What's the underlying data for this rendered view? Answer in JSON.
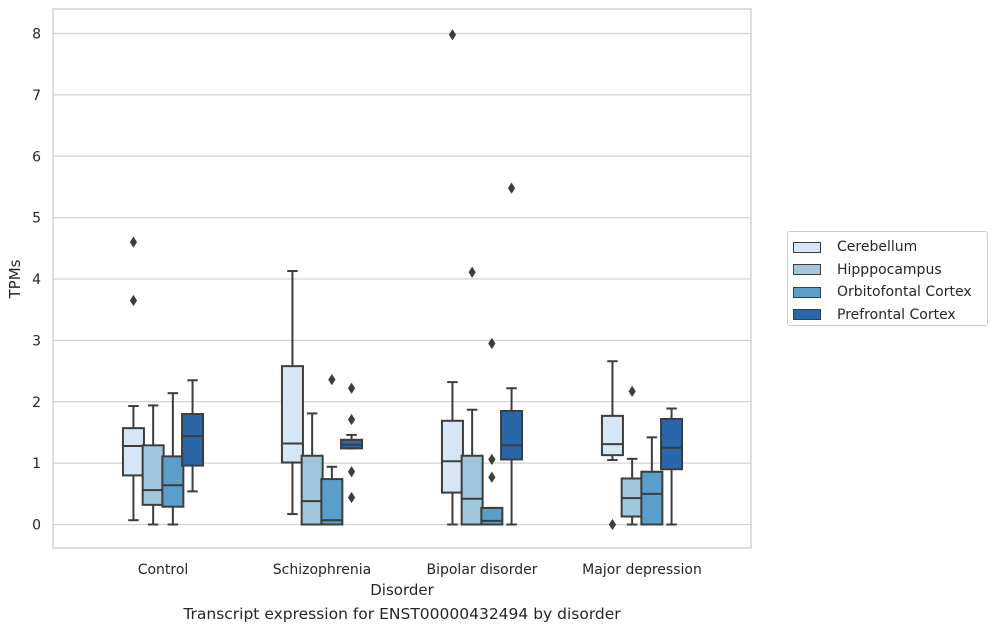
{
  "chart_data": {
    "type": "boxplot",
    "caption": "Transcript expression for ENST00000432494 by disorder",
    "xlabel": "Disorder",
    "ylabel": "TPMs",
    "ylim": [
      -0.4,
      8.4
    ],
    "yticks": [
      0,
      1,
      2,
      3,
      4,
      5,
      6,
      7,
      8
    ],
    "grid": true,
    "legend_position": "right",
    "categories": [
      "Control",
      "Schizophrenia",
      "Bipolar disorder",
      "Major depression"
    ],
    "series": [
      {
        "name": "Cerebellum",
        "color": "#d6e6f4",
        "boxes": [
          {
            "whisker_low": 0.07,
            "q1": 0.8,
            "median": 1.28,
            "q3": 1.57,
            "whisker_high": 1.93,
            "outliers": [
              3.65,
              4.6
            ]
          },
          {
            "whisker_low": 0.17,
            "q1": 1.01,
            "median": 1.32,
            "q3": 2.58,
            "whisker_high": 4.13,
            "outliers": []
          },
          {
            "whisker_low": 0.0,
            "q1": 0.52,
            "median": 1.03,
            "q3": 1.69,
            "whisker_high": 2.32,
            "outliers": [
              7.98
            ]
          },
          {
            "whisker_low": 1.05,
            "q1": 1.13,
            "median": 1.31,
            "q3": 1.77,
            "whisker_high": 2.66,
            "outliers": [
              0.0
            ]
          }
        ]
      },
      {
        "name": "Hipppocampus",
        "color": "#a0c7de",
        "boxes": [
          {
            "whisker_low": 0.0,
            "q1": 0.32,
            "median": 0.56,
            "q3": 1.29,
            "whisker_high": 1.94,
            "outliers": []
          },
          {
            "whisker_low": 0.0,
            "q1": 0.0,
            "median": 0.38,
            "q3": 1.12,
            "whisker_high": 1.81,
            "outliers": []
          },
          {
            "whisker_low": 0.0,
            "q1": 0.0,
            "median": 0.42,
            "q3": 1.12,
            "whisker_high": 1.87,
            "outliers": [
              4.11
            ]
          },
          {
            "whisker_low": 0.0,
            "q1": 0.13,
            "median": 0.43,
            "q3": 0.75,
            "whisker_high": 1.07,
            "outliers": [
              2.17
            ]
          }
        ]
      },
      {
        "name": "Orbitofontal Cortex",
        "color": "#5a9ec9",
        "boxes": [
          {
            "whisker_low": 0.0,
            "q1": 0.29,
            "median": 0.64,
            "q3": 1.11,
            "whisker_high": 2.14,
            "outliers": []
          },
          {
            "whisker_low": 0.0,
            "q1": 0.0,
            "median": 0.07,
            "q3": 0.74,
            "whisker_high": 0.94,
            "outliers": [
              2.36
            ]
          },
          {
            "whisker_low": 0.0,
            "q1": 0.0,
            "median": 0.06,
            "q3": 0.27,
            "whisker_high": 0.27,
            "outliers": [
              0.77,
              1.06,
              2.95
            ]
          },
          {
            "whisker_low": 0.0,
            "q1": 0.0,
            "median": 0.5,
            "q3": 0.86,
            "whisker_high": 1.42,
            "outliers": []
          }
        ]
      },
      {
        "name": "Prefrontal Cortex",
        "color": "#2967a8",
        "boxes": [
          {
            "whisker_low": 0.54,
            "q1": 0.96,
            "median": 1.44,
            "q3": 1.8,
            "whisker_high": 2.35,
            "outliers": []
          },
          {
            "whisker_low": 1.24,
            "q1": 1.24,
            "median": 1.3,
            "q3": 1.38,
            "whisker_high": 1.46,
            "outliers": [
              0.44,
              0.86,
              1.71,
              2.22
            ]
          },
          {
            "whisker_low": 0.0,
            "q1": 1.06,
            "median": 1.29,
            "q3": 1.85,
            "whisker_high": 2.22,
            "outliers": [
              5.48
            ]
          },
          {
            "whisker_low": 0.0,
            "q1": 0.9,
            "median": 1.25,
            "q3": 1.72,
            "whisker_high": 1.89,
            "outliers": []
          }
        ]
      }
    ]
  }
}
